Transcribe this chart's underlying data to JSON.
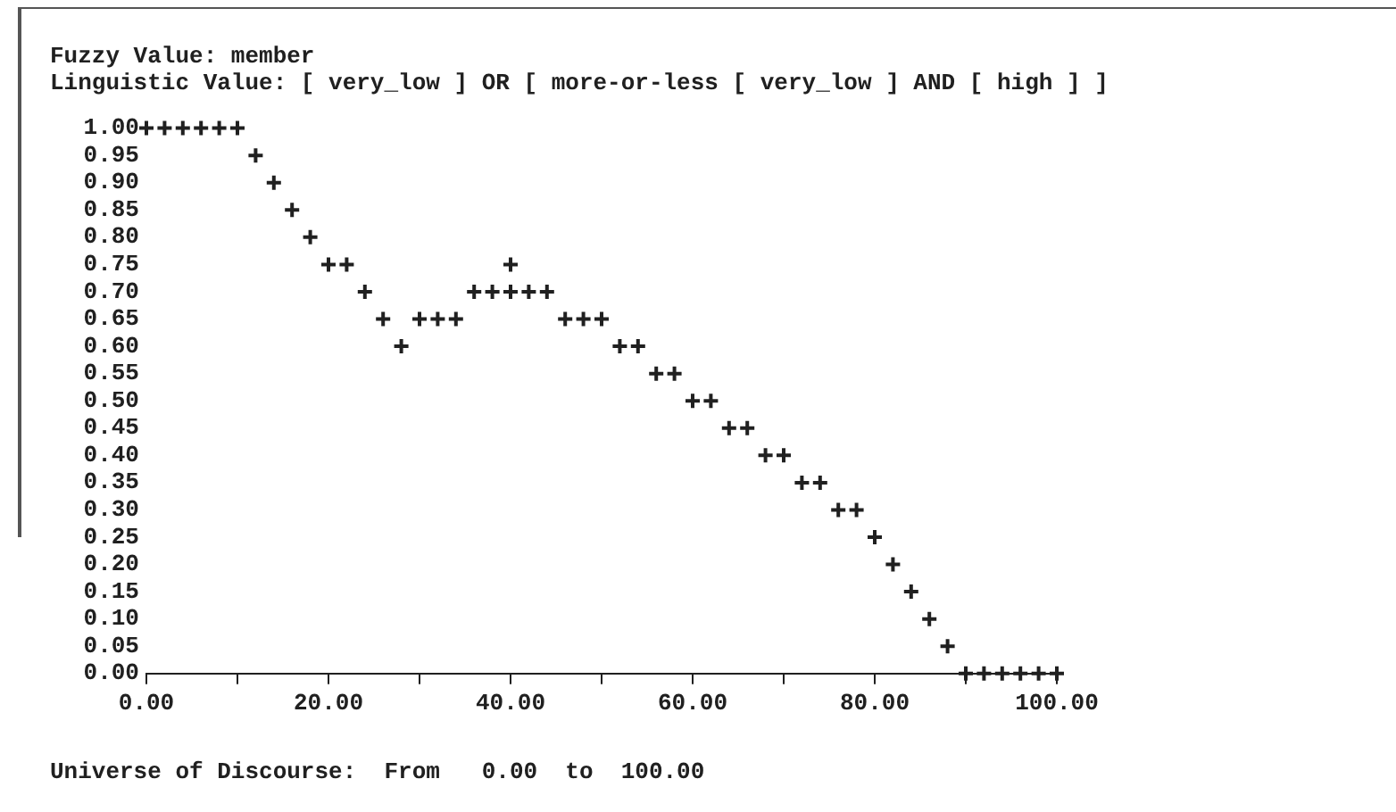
{
  "chart_data": {
    "type": "scatter",
    "title": "Fuzzy Value: member",
    "subtitle": "Linguistic Value: [ very_low ] OR [ more-or-less [ very_low ] AND [ high ] ]",
    "annotations": [
      "Universe of Discourse:  From   0.00  to  100.00"
    ],
    "x": [
      0,
      2,
      4,
      6,
      8,
      10,
      12,
      14,
      16,
      18,
      20,
      22,
      24,
      26,
      28,
      30,
      32,
      34,
      36,
      38,
      40,
      40,
      42,
      44,
      46,
      48,
      50,
      52,
      54,
      56,
      58,
      60,
      62,
      64,
      66,
      68,
      70,
      72,
      74,
      76,
      78,
      80,
      82,
      84,
      86,
      88,
      90,
      92,
      94,
      96,
      98,
      100
    ],
    "values": [
      1,
      1,
      1,
      1,
      1,
      1,
      0.95,
      0.9,
      0.85,
      0.8,
      0.75,
      0.75,
      0.7,
      0.65,
      0.6,
      0.65,
      0.65,
      0.65,
      0.7,
      0.7,
      0.75,
      0.7,
      0.7,
      0.7,
      0.65,
      0.65,
      0.65,
      0.6,
      0.6,
      0.55,
      0.55,
      0.5,
      0.5,
      0.45,
      0.45,
      0.4,
      0.4,
      0.35,
      0.35,
      0.3,
      0.3,
      0.25,
      0.2,
      0.15,
      0.1,
      0.05,
      0,
      0,
      0,
      0,
      0,
      0
    ],
    "color": "#202020",
    "marker": "cross",
    "grid": false,
    "xlim": [
      0,
      100
    ],
    "ylim": [
      0,
      1
    ],
    "xticks": [
      {
        "value": 0,
        "label": "0.00"
      },
      {
        "value": 10,
        "label": null
      },
      {
        "value": 20,
        "label": "20.00"
      },
      {
        "value": 30,
        "label": null
      },
      {
        "value": 40,
        "label": "40.00"
      },
      {
        "value": 50,
        "label": null
      },
      {
        "value": 60,
        "label": "60.00"
      },
      {
        "value": 70,
        "label": null
      },
      {
        "value": 80,
        "label": "80.00"
      },
      {
        "value": 90,
        "label": null
      },
      {
        "value": 100,
        "label": "100.00"
      }
    ],
    "yticks": [
      {
        "value": 0,
        "label": "0.00"
      },
      {
        "value": 0.05,
        "label": "0.05"
      },
      {
        "value": 0.1,
        "label": "0.10"
      },
      {
        "value": 0.15,
        "label": "0.15"
      },
      {
        "value": 0.2,
        "label": "0.20"
      },
      {
        "value": 0.25,
        "label": "0.25"
      },
      {
        "value": 0.3,
        "label": "0.30"
      },
      {
        "value": 0.35,
        "label": "0.35"
      },
      {
        "value": 0.4,
        "label": "0.40"
      },
      {
        "value": 0.45,
        "label": "0.45"
      },
      {
        "value": 0.5,
        "label": "0.50"
      },
      {
        "value": 0.55,
        "label": "0.55"
      },
      {
        "value": 0.6,
        "label": "0.60"
      },
      {
        "value": 0.65,
        "label": "0.65"
      },
      {
        "value": 0.7,
        "label": "0.70"
      },
      {
        "value": 0.75,
        "label": "0.75"
      },
      {
        "value": 0.8,
        "label": "0.80"
      },
      {
        "value": 0.85,
        "label": "0.85"
      },
      {
        "value": 0.9,
        "label": "0.90"
      },
      {
        "value": 0.95,
        "label": "0.95"
      },
      {
        "value": 1,
        "label": "1.00"
      }
    ]
  }
}
